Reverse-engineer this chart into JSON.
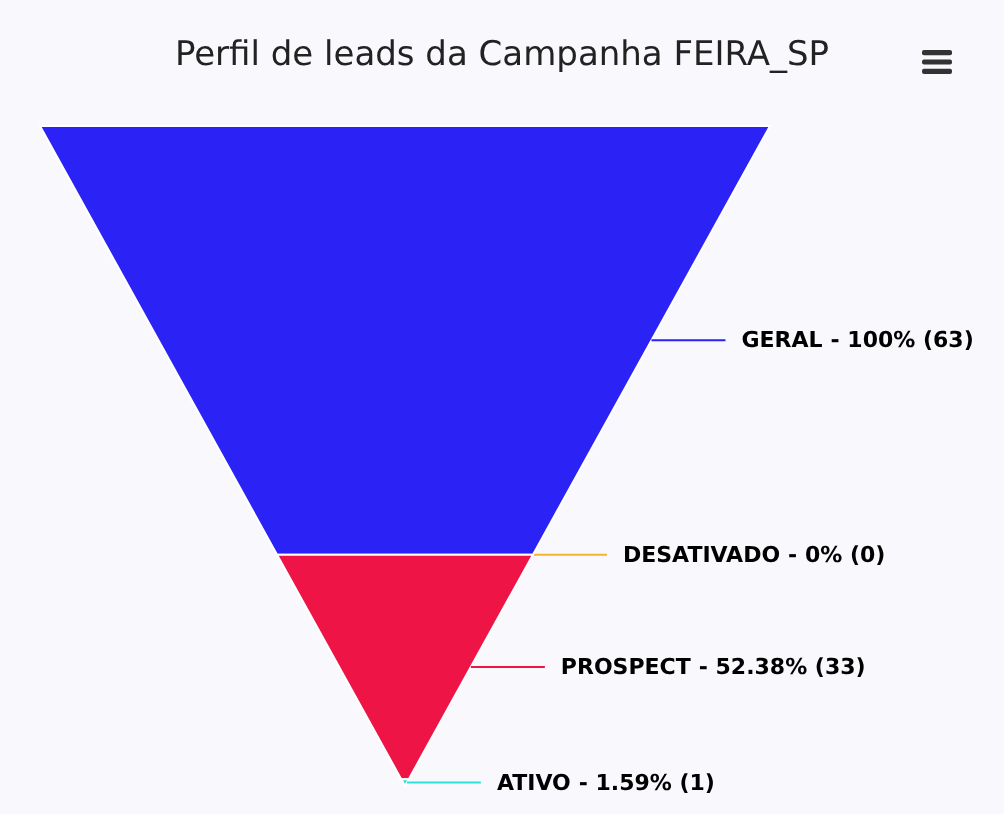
{
  "chart_data": {
    "type": "other",
    "title": "Perfil de leads da Campanha FEIRA_SP",
    "categories": [
      "GERAL",
      "DESATIVADO",
      "PROSPECT",
      "ATIVO"
    ],
    "values": [
      63,
      0,
      33,
      1
    ],
    "value_labels": [
      "- 100% (63)",
      "- 0% (0)",
      "- 52.38% (33)",
      "- 1.59% (1)"
    ],
    "colors": [
      "#2b22f5",
      "#f7b32b",
      "#ee1446",
      "#2fe0d8"
    ]
  }
}
